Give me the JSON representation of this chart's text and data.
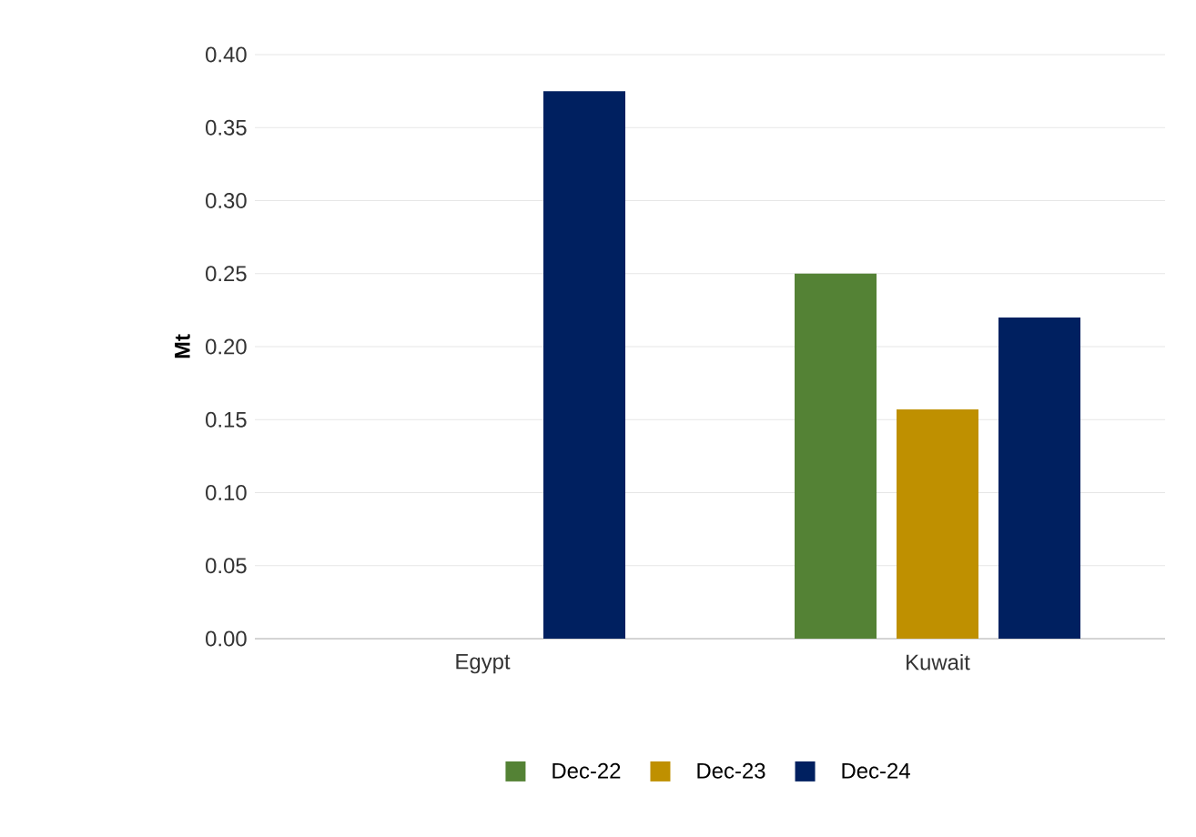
{
  "chart_data": {
    "type": "bar",
    "ylabel": "Mt",
    "categories": [
      "Egypt",
      "Kuwait"
    ],
    "series": [
      {
        "name": "Dec-22",
        "color": "#548235",
        "values": [
          null,
          0.25
        ]
      },
      {
        "name": "Dec-23",
        "color": "#bf9000",
        "values": [
          null,
          0.157
        ]
      },
      {
        "name": "Dec-24",
        "color": "#002060",
        "values": [
          0.375,
          0.22
        ]
      }
    ],
    "ylim": [
      0,
      0.4
    ],
    "yticks": [
      {
        "value": 0,
        "label": "0.00"
      },
      {
        "value": 0.05,
        "label": "0.05"
      },
      {
        "value": 0.1,
        "label": "0.10"
      },
      {
        "value": 0.15,
        "label": "0.15"
      },
      {
        "value": 0.2,
        "label": "0.20"
      },
      {
        "value": 0.25,
        "label": "0.25"
      },
      {
        "value": 0.3,
        "label": "0.30"
      },
      {
        "value": 0.35,
        "label": "0.35"
      },
      {
        "value": 0.4,
        "label": "0.40"
      }
    ],
    "grid": "y",
    "legend": "bottom"
  }
}
